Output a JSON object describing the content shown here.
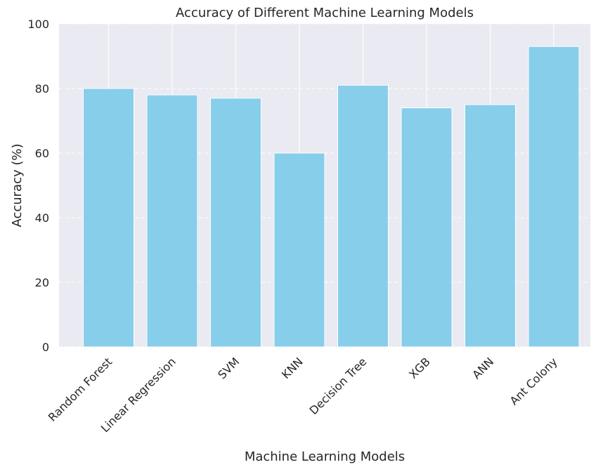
{
  "chart_data": {
    "type": "bar",
    "title": "Accuracy of Different Machine Learning Models",
    "xlabel": "Machine Learning Models",
    "ylabel": "Accuracy (%)",
    "categories": [
      "Random Forest",
      "Linear Regression",
      "SVM",
      "KNN",
      "Decision Tree",
      "XGB",
      "ANN",
      "Ant Colony"
    ],
    "values": [
      80,
      78,
      77,
      60,
      81,
      74,
      75,
      93
    ],
    "ylim": [
      0,
      100
    ],
    "yticks": [
      "0",
      "20",
      "40",
      "60",
      "80",
      "100"
    ],
    "grid": "horizontal dashed",
    "bar_color": "#87CEEB",
    "background_color": "#EAEAF2"
  }
}
